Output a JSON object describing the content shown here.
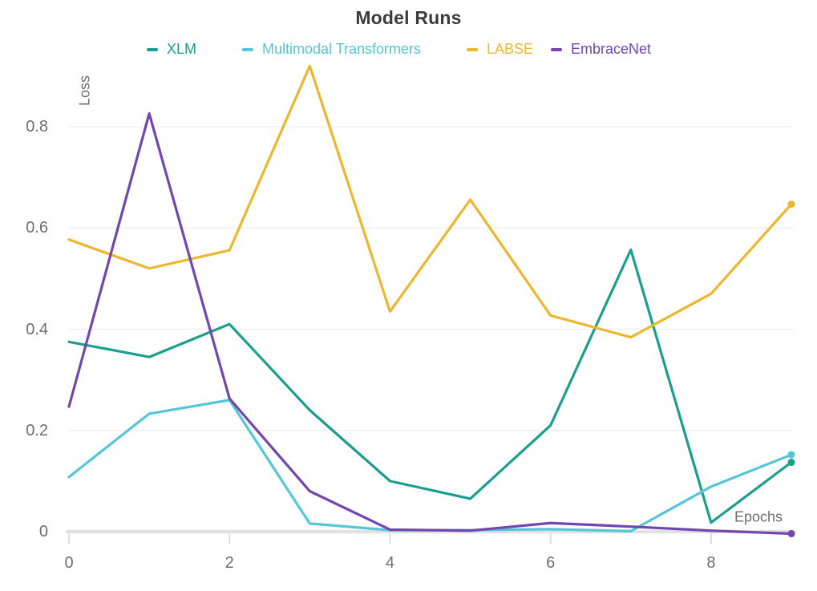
{
  "chart_data": {
    "type": "line",
    "title": "Model Runs",
    "xlabel": "Epochs",
    "ylabel": "Loss",
    "x": [
      0,
      1,
      2,
      3,
      4,
      5,
      6,
      7,
      8,
      9
    ],
    "x_range": [
      0,
      9
    ],
    "ylim": [
      0,
      0.92
    ],
    "grid": true,
    "legend_position": "top",
    "end_markers": true,
    "series": [
      {
        "name": "XLM",
        "color": "#1b9e8d",
        "values": [
          0.375,
          0.345,
          0.41,
          0.24,
          0.1,
          0.065,
          0.21,
          0.557,
          0.018,
          0.137
        ]
      },
      {
        "name": "Multimodal Transformers",
        "color": "#54c6d9",
        "values": [
          0.108,
          0.233,
          0.26,
          0.016,
          0.003,
          0.003,
          0.005,
          0.001,
          0.089,
          0.152
        ]
      },
      {
        "name": "LABSE",
        "color": "#ecb72e",
        "values": [
          0.577,
          0.52,
          0.556,
          0.92,
          0.435,
          0.656,
          0.427,
          0.384,
          0.47,
          0.647
        ]
      },
      {
        "name": "EmbraceNet",
        "color": "#7246ae",
        "values": [
          0.247,
          0.826,
          0.263,
          0.08,
          0.004,
          0.002,
          0.017,
          0.01,
          0.002,
          -0.004
        ]
      }
    ],
    "x_ticks": [
      {
        "label": "0",
        "value": 0
      },
      {
        "label": "2",
        "value": 2
      },
      {
        "label": "4",
        "value": 4
      },
      {
        "label": "6",
        "value": 6
      },
      {
        "label": "8",
        "value": 8
      }
    ],
    "y_ticks": [
      {
        "label": "0",
        "value": 0
      },
      {
        "label": "0.2",
        "value": 0.2
      },
      {
        "label": "0.4",
        "value": 0.4
      },
      {
        "label": "0.6",
        "value": 0.6
      },
      {
        "label": "0.8",
        "value": 0.8
      }
    ],
    "colors": {
      "title": "#3b3b3b",
      "tick_text": "#6e6e6e",
      "axis_label_text": "#6e6e6e",
      "gridline": "#ededed",
      "axis_line": "#e2e2e2",
      "tick_mark": "#dedede"
    }
  }
}
